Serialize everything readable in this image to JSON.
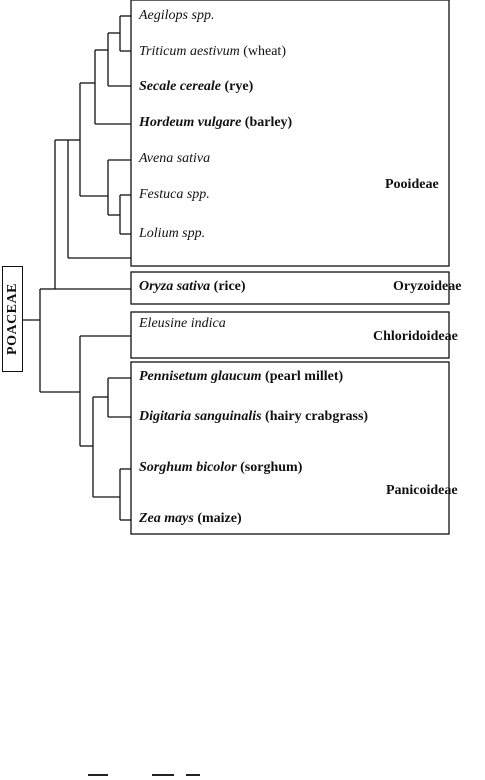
{
  "family": "POACEAE",
  "subfamilies": [
    {
      "label": "Pooideae"
    },
    {
      "label": "Oryzoideae"
    },
    {
      "label": "Chloridoideae"
    },
    {
      "label": "Panicoideae"
    }
  ],
  "taxa": [
    {
      "sci": "Aegilops spp.",
      "common": "",
      "bold": false
    },
    {
      "sci": "Triticum aestivum",
      "common": "(wheat)",
      "bold": false
    },
    {
      "sci": "Secale cereale",
      "common": "(rye)",
      "bold": true
    },
    {
      "sci": "Hordeum vulgare",
      "common": "(barley)",
      "bold": true
    },
    {
      "sci": "Avena sativa",
      "common": "",
      "bold": false
    },
    {
      "sci": "Festuca spp.",
      "common": "",
      "bold": false
    },
    {
      "sci": "Lolium spp.",
      "common": "",
      "bold": false
    },
    {
      "sci": "Oryza sativa",
      "common": "(rice)",
      "bold": true
    },
    {
      "sci": "Eleusine indica",
      "common": "",
      "bold": false
    },
    {
      "sci": "Pennisetum glaucum",
      "common": "(pearl millet)",
      "bold": true
    },
    {
      "sci": "Digitaria sanguinalis",
      "common": "(hairy crabgrass)",
      "bold": true
    },
    {
      "sci": "Sorghum bicolor",
      "common": "(sorghum)",
      "bold": true
    },
    {
      "sci": "Zea mays",
      "common": "(maize)",
      "bold": true
    }
  ]
}
